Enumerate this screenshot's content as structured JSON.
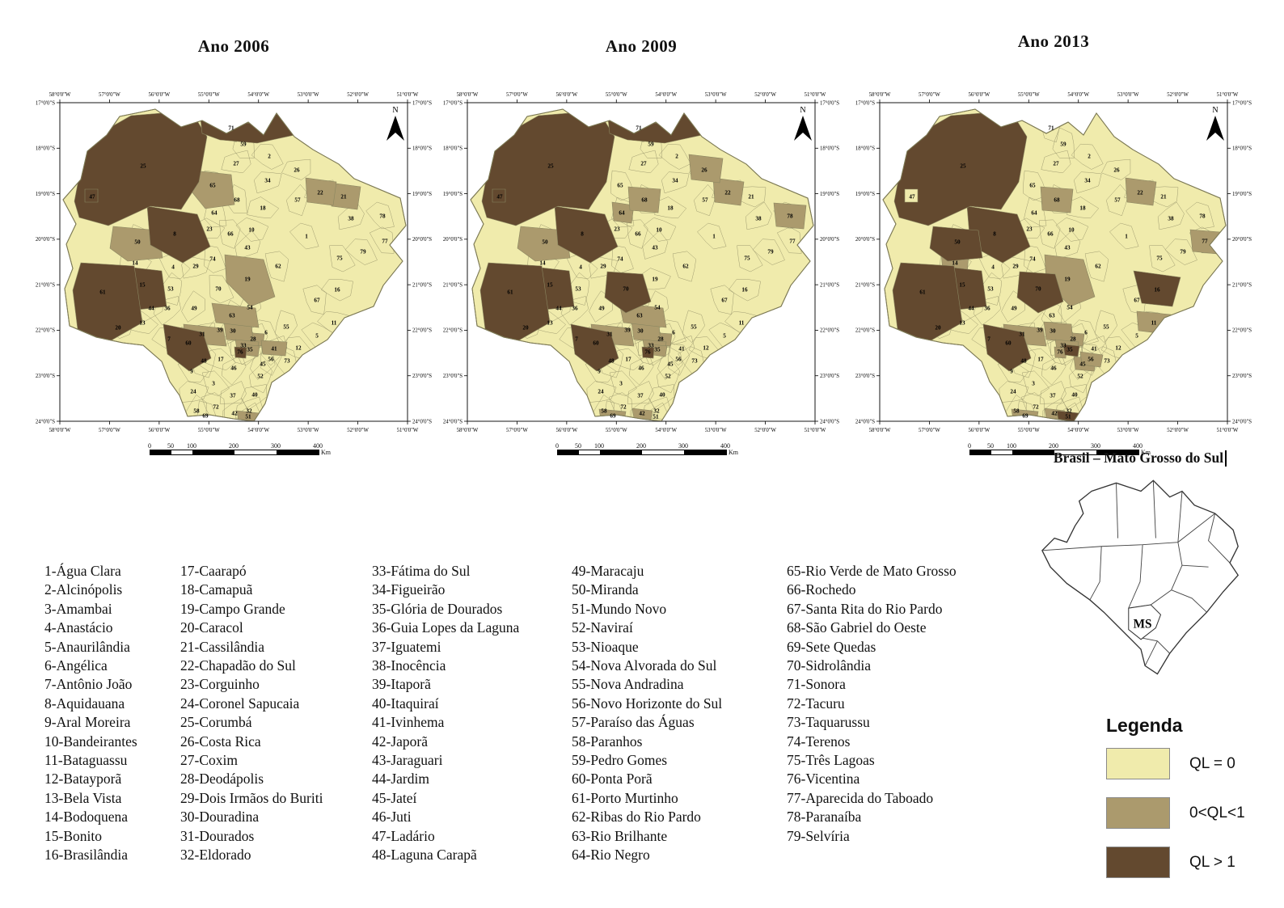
{
  "figure": {
    "description": "Three choropleth maps of Mato Grosso do Sul municipalities classified by location quotient (QL) for 2006, 2009 and 2013, with municipality index list, Brazil location inset and legend."
  },
  "maps": [
    {
      "title": "Ano 2006",
      "year": 2006,
      "classes": {
        "ql_gt_1": [
          8,
          15,
          25,
          47,
          60,
          61,
          71,
          76
        ],
        "ql_between": [
          19,
          21,
          22,
          28,
          30,
          31,
          33,
          35,
          41,
          50,
          51,
          63,
          65
        ]
      },
      "cream_islands": []
    },
    {
      "title": "Ano 2009",
      "year": 2009,
      "classes": {
        "ql_gt_1": [
          8,
          15,
          25,
          47,
          60,
          61,
          70,
          71,
          76
        ],
        "ql_between": [
          22,
          26,
          28,
          30,
          31,
          33,
          35,
          42,
          50,
          63,
          64,
          68,
          69,
          78
        ]
      },
      "cream_islands": []
    },
    {
      "title": "Ano 2013",
      "year": 2013,
      "classes": {
        "ql_gt_1": [
          8,
          15,
          16,
          25,
          35,
          50,
          51,
          60,
          61,
          70
        ],
        "ql_between": [
          11,
          14,
          19,
          22,
          28,
          30,
          31,
          33,
          42,
          45,
          56,
          68,
          69,
          76,
          77
        ]
      },
      "cream_islands": [
        47
      ]
    }
  ],
  "axes": {
    "lon_labels": [
      "58°0'0\"W",
      "57°0'0\"W",
      "56°0'0\"W",
      "55°0'0\"W",
      "54°0'0\"W",
      "53°0'0\"W",
      "52°0'0\"W",
      "51°0'0\"W"
    ],
    "lat_labels": [
      "17°0'0\"S",
      "18°0'0\"S",
      "19°0'0\"S",
      "20°0'0\"S",
      "21°0'0\"S",
      "22°0'0\"S",
      "23°0'0\"S",
      "24°0'0\"S"
    ]
  },
  "north_label": "N",
  "scale_bar": {
    "ticks": [
      "0",
      "50",
      "100",
      "200",
      "300",
      "400"
    ],
    "unit": "Km"
  },
  "municipalities": [
    {
      "n": 1,
      "name": "Água Clara"
    },
    {
      "n": 2,
      "name": "Alcinópolis"
    },
    {
      "n": 3,
      "name": "Amambai"
    },
    {
      "n": 4,
      "name": "Anastácio"
    },
    {
      "n": 5,
      "name": "Anaurilândia"
    },
    {
      "n": 6,
      "name": "Angélica"
    },
    {
      "n": 7,
      "name": "Antônio João"
    },
    {
      "n": 8,
      "name": "Aquidauana"
    },
    {
      "n": 9,
      "name": "Aral Moreira"
    },
    {
      "n": 10,
      "name": "Bandeirantes"
    },
    {
      "n": 11,
      "name": "Bataguassu"
    },
    {
      "n": 12,
      "name": "Batayporã"
    },
    {
      "n": 13,
      "name": "Bela Vista"
    },
    {
      "n": 14,
      "name": "Bodoquena"
    },
    {
      "n": 15,
      "name": "Bonito"
    },
    {
      "n": 16,
      "name": "Brasilândia"
    },
    {
      "n": 17,
      "name": "Caarapó"
    },
    {
      "n": 18,
      "name": "Camapuã"
    },
    {
      "n": 19,
      "name": "Campo Grande"
    },
    {
      "n": 20,
      "name": "Caracol"
    },
    {
      "n": 21,
      "name": "Cassilândia"
    },
    {
      "n": 22,
      "name": "Chapadão do Sul"
    },
    {
      "n": 23,
      "name": "Corguinho"
    },
    {
      "n": 24,
      "name": "Coronel Sapucaia"
    },
    {
      "n": 25,
      "name": "Corumbá"
    },
    {
      "n": 26,
      "name": "Costa Rica"
    },
    {
      "n": 27,
      "name": "Coxim"
    },
    {
      "n": 28,
      "name": "Deodápolis"
    },
    {
      "n": 29,
      "name": "Dois Irmãos do Buriti"
    },
    {
      "n": 30,
      "name": "Douradina"
    },
    {
      "n": 31,
      "name": "Dourados"
    },
    {
      "n": 32,
      "name": "Eldorado"
    },
    {
      "n": 33,
      "name": "Fátima do Sul"
    },
    {
      "n": 34,
      "name": "Figueirão"
    },
    {
      "n": 35,
      "name": "Glória de Dourados"
    },
    {
      "n": 36,
      "name": "Guia Lopes da Laguna"
    },
    {
      "n": 37,
      "name": "Iguatemi"
    },
    {
      "n": 38,
      "name": "Inocência"
    },
    {
      "n": 39,
      "name": "Itaporã"
    },
    {
      "n": 40,
      "name": "Itaquiraí"
    },
    {
      "n": 41,
      "name": "Ivinhema"
    },
    {
      "n": 42,
      "name": "Japorã"
    },
    {
      "n": 43,
      "name": "Jaraguari"
    },
    {
      "n": 44,
      "name": "Jardim"
    },
    {
      "n": 45,
      "name": "Jateí"
    },
    {
      "n": 46,
      "name": "Juti"
    },
    {
      "n": 47,
      "name": "Ladário"
    },
    {
      "n": 48,
      "name": "Laguna Carapã"
    },
    {
      "n": 49,
      "name": "Maracaju"
    },
    {
      "n": 50,
      "name": "Miranda"
    },
    {
      "n": 51,
      "name": "Mundo Novo"
    },
    {
      "n": 52,
      "name": "Naviraí"
    },
    {
      "n": 53,
      "name": "Nioaque"
    },
    {
      "n": 54,
      "name": "Nova Alvorada do Sul"
    },
    {
      "n": 55,
      "name": "Nova Andradina"
    },
    {
      "n": 56,
      "name": "Novo Horizonte do Sul"
    },
    {
      "n": 57,
      "name": "Paraíso das Águas"
    },
    {
      "n": 58,
      "name": "Paranhos"
    },
    {
      "n": 59,
      "name": "Pedro Gomes"
    },
    {
      "n": 60,
      "name": "Ponta Porã"
    },
    {
      "n": 61,
      "name": "Porto Murtinho"
    },
    {
      "n": 62,
      "name": "Ribas do Rio Pardo"
    },
    {
      "n": 63,
      "name": "Rio Brilhante"
    },
    {
      "n": 64,
      "name": "Rio Negro"
    },
    {
      "n": 65,
      "name": "Rio Verde de Mato Grosso"
    },
    {
      "n": 66,
      "name": "Rochedo"
    },
    {
      "n": 67,
      "name": "Santa Rita do Rio Pardo"
    },
    {
      "n": 68,
      "name": "São Gabriel do Oeste"
    },
    {
      "n": 69,
      "name": "Sete Quedas"
    },
    {
      "n": 70,
      "name": "Sidrolândia"
    },
    {
      "n": 71,
      "name": "Sonora"
    },
    {
      "n": 72,
      "name": "Tacuru"
    },
    {
      "n": 73,
      "name": "Taquarussu"
    },
    {
      "n": 74,
      "name": "Terenos"
    },
    {
      "n": 75,
      "name": "Três Lagoas"
    },
    {
      "n": 76,
      "name": "Vicentina"
    },
    {
      "n": 77,
      "name": "Aparecida do Taboado"
    },
    {
      "n": 78,
      "name": "Paranaíba"
    },
    {
      "n": 79,
      "name": "Selvíria"
    }
  ],
  "inset": {
    "title": "Brasil – Mato Grosso do Sul",
    "state_label": "MS"
  },
  "legend": {
    "title": "Legenda",
    "items": [
      {
        "key": "cream",
        "label": "QL = 0",
        "color": "#F0EBAC"
      },
      {
        "key": "tan",
        "label": "0<QL<1",
        "color": "#AB9A6D"
      },
      {
        "key": "dark",
        "label": "QL > 1",
        "color": "#63492F"
      }
    ]
  },
  "colors": {
    "cream": "#F0EBAC",
    "tan": "#AB9A6D",
    "dark": "#63492F",
    "outline": "#7d7a55",
    "cell_border": "#97946a",
    "frame": "#3c3c3c"
  }
}
